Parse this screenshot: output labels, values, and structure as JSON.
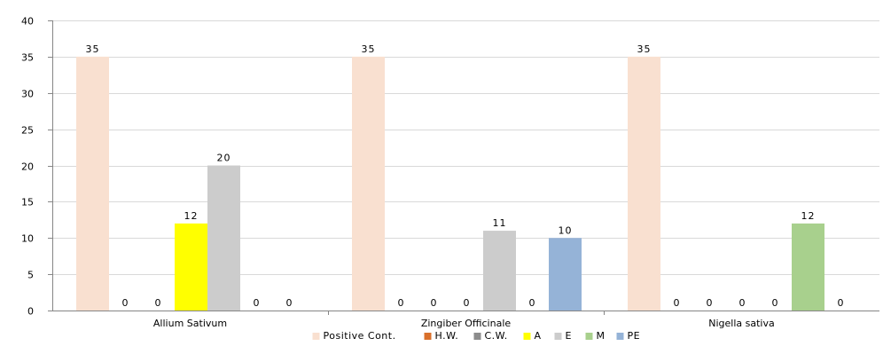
{
  "chart_data": {
    "type": "bar",
    "title": "",
    "xlabel": "",
    "ylabel": "",
    "ylim": [
      0,
      40
    ],
    "yticks": [
      0,
      5,
      10,
      15,
      20,
      25,
      30,
      35,
      40
    ],
    "grid": true,
    "legend_position": "bottom",
    "categories": [
      "Allium Sativum",
      "Zingiber Officinale",
      "Nigella sativa"
    ],
    "series": [
      {
        "name": "Positive Cont.",
        "color": "#f9e0d0",
        "values": [
          35,
          35,
          35
        ]
      },
      {
        "name": "H.W.",
        "color": "#d9702b",
        "values": [
          0,
          0,
          0
        ]
      },
      {
        "name": "C.W.",
        "color": "#8c8c8c",
        "values": [
          0,
          0,
          0
        ]
      },
      {
        "name": "A",
        "color": "#ffff00",
        "values": [
          12,
          0,
          0
        ]
      },
      {
        "name": "E",
        "color": "#cccccc",
        "values": [
          20,
          11,
          0
        ]
      },
      {
        "name": "M",
        "color": "#a8d08d",
        "values": [
          0,
          0,
          12
        ]
      },
      {
        "name": "PE",
        "color": "#95b3d7",
        "values": [
          0,
          10,
          0
        ]
      }
    ]
  }
}
